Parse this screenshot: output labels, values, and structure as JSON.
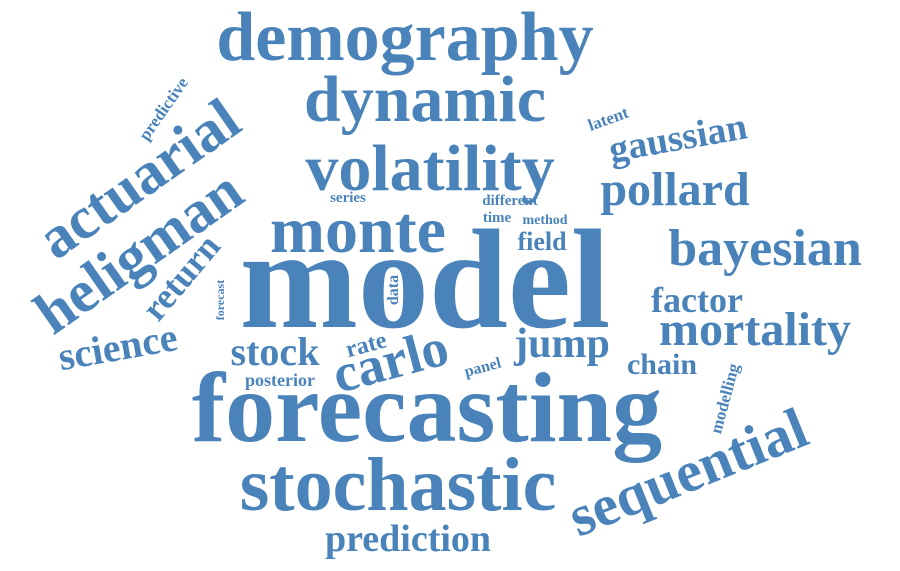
{
  "word_color": "#4a83b9",
  "background": "#ffffff",
  "words": [
    "model",
    "forecasting",
    "stochastic",
    "demography",
    "dynamic",
    "volatility",
    "monte",
    "carlo",
    "actuarial",
    "heligman",
    "bayesian",
    "mortality",
    "sequential",
    "pollard",
    "gaussian",
    "prediction",
    "factor",
    "jump",
    "stock",
    "science",
    "return",
    "chain",
    "field",
    "rate",
    "modelling",
    "latent",
    "predictive",
    "posterior",
    "panel",
    "data",
    "forecast",
    "series",
    "different",
    "time",
    "method"
  ]
}
